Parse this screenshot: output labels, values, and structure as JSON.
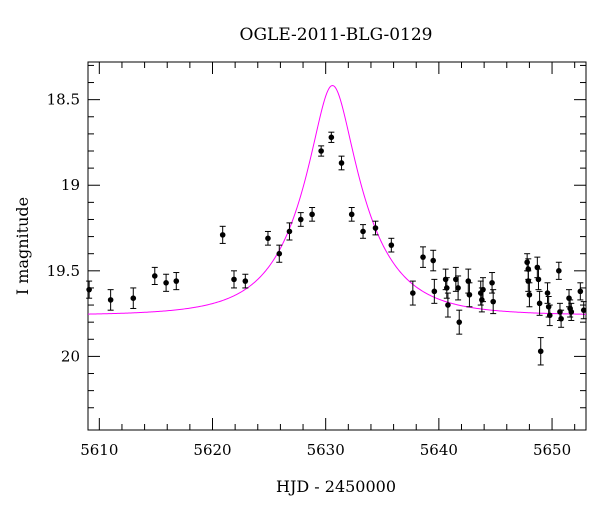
{
  "chart_data": {
    "type": "scatter",
    "title": "OGLE-2011-BLG-0129",
    "xlabel": "HJD - 2450000",
    "ylabel": "I magnitude",
    "xlim": [
      5609,
      5653
    ],
    "ylim": [
      20.43,
      18.28
    ],
    "y_inverted": true,
    "x_ticks": [
      5610,
      5620,
      5630,
      5640,
      5650
    ],
    "y_ticks": [
      18.5,
      19,
      19.5,
      20
    ],
    "x_tick_labels": [
      "5610",
      "5620",
      "5630",
      "5640",
      "5650"
    ],
    "y_tick_labels": [
      "18.5",
      "19",
      "19.5",
      "20"
    ],
    "grid": false,
    "colors": {
      "points": "#000000",
      "model": "#ff00ff"
    },
    "series": [
      {
        "x": [
          5609.1,
          5611.0,
          5613.0,
          5614.9,
          5615.9,
          5616.8,
          5620.9,
          5621.9,
          5622.9,
          5624.9,
          5625.9,
          5626.8,
          5627.8,
          5628.8,
          5629.6,
          5630.5,
          5631.4,
          5632.3,
          5633.3,
          5634.4,
          5635.8,
          5637.7,
          5638.6,
          5639.5,
          5639.6,
          5640.6,
          5640.7,
          5640.8,
          5641.5,
          5641.7,
          5641.8,
          5642.6,
          5642.7,
          5643.7,
          5643.8,
          5643.9,
          5644.7,
          5644.8,
          5647.8,
          5647.9,
          5647.9,
          5648.0,
          5648.7,
          5648.8,
          5648.9,
          5649.0,
          5649.6,
          5649.7,
          5649.8,
          5650.6,
          5650.7,
          5650.8,
          5651.5,
          5651.6,
          5651.7,
          5652.5,
          5652.8
        ],
        "y": [
          19.61,
          19.67,
          19.66,
          19.53,
          19.57,
          19.56,
          19.29,
          19.55,
          19.56,
          19.31,
          19.4,
          19.27,
          19.2,
          19.17,
          18.8,
          18.72,
          18.87,
          19.17,
          19.27,
          19.25,
          19.35,
          19.63,
          19.42,
          19.44,
          19.62,
          19.55,
          19.6,
          19.7,
          19.55,
          19.6,
          19.8,
          19.56,
          19.64,
          19.63,
          19.67,
          19.61,
          19.57,
          19.68,
          19.45,
          19.49,
          19.56,
          19.64,
          19.48,
          19.55,
          19.69,
          19.97,
          19.63,
          19.71,
          19.76,
          19.5,
          19.74,
          19.78,
          19.66,
          19.72,
          19.74,
          19.62,
          19.73
        ],
        "yerr": [
          0.05,
          0.06,
          0.06,
          0.05,
          0.05,
          0.05,
          0.05,
          0.05,
          0.04,
          0.04,
          0.05,
          0.05,
          0.04,
          0.04,
          0.03,
          0.03,
          0.04,
          0.04,
          0.04,
          0.04,
          0.04,
          0.07,
          0.06,
          0.06,
          0.07,
          0.06,
          0.06,
          0.07,
          0.07,
          0.07,
          0.07,
          0.07,
          0.07,
          0.07,
          0.07,
          0.07,
          0.06,
          0.07,
          0.05,
          0.06,
          0.06,
          0.07,
          0.06,
          0.06,
          0.07,
          0.08,
          0.06,
          0.06,
          0.06,
          0.05,
          0.05,
          0.05,
          0.05,
          0.05,
          0.05,
          0.05,
          0.05
        ]
      },
      {
        "type": "line",
        "model": {
          "t0": 5630.6,
          "u0": 0.3,
          "tE": 5.5,
          "baseline_mag": 19.76
        }
      }
    ]
  }
}
